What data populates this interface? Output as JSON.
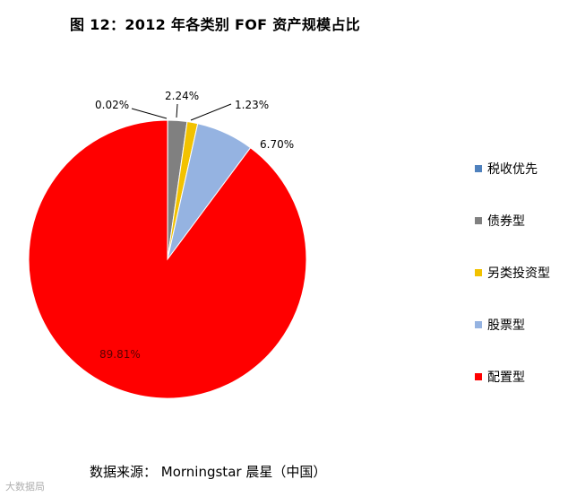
{
  "title": "图 12：2012 年各类别 FOF 资产规模占比",
  "chart_data": {
    "type": "pie",
    "title": "图 12：2012 年各类别 FOF 资产规模占比",
    "slices": [
      {
        "name": "税收优先",
        "value": 0.02,
        "label": "0.02%",
        "color": "#4f81bd"
      },
      {
        "name": "债券型",
        "value": 2.24,
        "label": "2.24%",
        "color": "#808080"
      },
      {
        "name": "另类投资型",
        "value": 1.23,
        "label": "1.23%",
        "color": "#f2c200"
      },
      {
        "name": "股票型",
        "value": 6.7,
        "label": "6.70%",
        "color": "#95b3e1"
      },
      {
        "name": "配置型",
        "value": 89.81,
        "label": "89.81%",
        "color": "#ff0000"
      }
    ],
    "legend_position": "right"
  },
  "source": "数据来源：  Morningstar  晨星（中国）",
  "watermark": "大数据局"
}
